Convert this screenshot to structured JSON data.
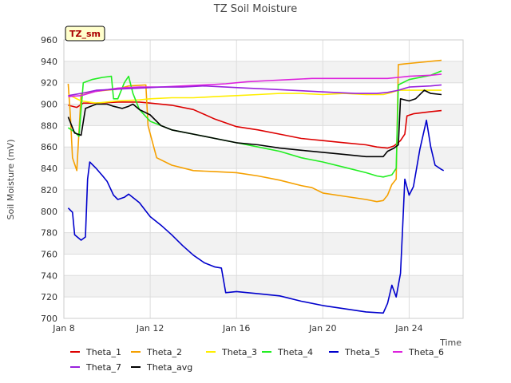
{
  "chart_data": {
    "type": "line",
    "title": "TZ Soil Moisture",
    "xlabel": "Time",
    "ylabel": "Soil Moisture (mV)",
    "site_label": "TZ_sm",
    "xlim": [
      8,
      26.5
    ],
    "ylim": [
      700,
      960
    ],
    "yticks": [
      700,
      720,
      740,
      760,
      780,
      800,
      820,
      840,
      860,
      880,
      900,
      920,
      940,
      960
    ],
    "xticks": [
      {
        "value": 8,
        "label": "Jan 8"
      },
      {
        "value": 12,
        "label": "Jan 12"
      },
      {
        "value": 16,
        "label": "Jan 16"
      },
      {
        "value": 20,
        "label": "Jan 20"
      },
      {
        "value": 24,
        "label": "Jan 24"
      }
    ],
    "series": [
      {
        "name": "Theta_1",
        "color": "#dd0000",
        "points": [
          [
            8.2,
            899
          ],
          [
            8.6,
            897
          ],
          [
            8.9,
            901
          ],
          [
            9.5,
            901
          ],
          [
            10.5,
            902
          ],
          [
            11.5,
            902
          ],
          [
            12,
            901
          ],
          [
            13,
            899
          ],
          [
            14,
            895
          ],
          [
            15,
            886
          ],
          [
            16,
            879
          ],
          [
            17,
            876
          ],
          [
            18,
            872
          ],
          [
            19,
            868
          ],
          [
            20,
            866
          ],
          [
            21,
            864
          ],
          [
            22,
            862
          ],
          [
            22.5,
            860
          ],
          [
            23,
            859
          ],
          [
            23.3,
            861
          ],
          [
            23.6,
            866
          ],
          [
            23.8,
            872
          ],
          [
            23.9,
            889
          ],
          [
            24.2,
            891
          ],
          [
            25,
            893
          ],
          [
            25.5,
            894
          ]
        ]
      },
      {
        "name": "Theta_2",
        "color": "#f5a000",
        "points": [
          [
            8.2,
            919
          ],
          [
            8.3,
            890
          ],
          [
            8.4,
            850
          ],
          [
            8.6,
            838
          ],
          [
            8.8,
            910
          ],
          [
            9.5,
            912
          ],
          [
            10.5,
            914
          ],
          [
            11,
            917
          ],
          [
            11.8,
            918
          ],
          [
            11.9,
            880
          ],
          [
            12.3,
            850
          ],
          [
            13,
            843
          ],
          [
            14,
            838
          ],
          [
            15,
            837
          ],
          [
            16,
            836
          ],
          [
            17,
            833
          ],
          [
            18,
            829
          ],
          [
            19,
            824
          ],
          [
            19.5,
            822
          ],
          [
            20,
            817
          ],
          [
            21,
            814
          ],
          [
            22,
            811
          ],
          [
            22.5,
            809
          ],
          [
            22.8,
            810
          ],
          [
            23,
            815
          ],
          [
            23.2,
            825
          ],
          [
            23.4,
            830
          ],
          [
            23.5,
            937
          ],
          [
            24,
            938
          ],
          [
            25,
            940
          ],
          [
            25.5,
            941
          ]
        ]
      },
      {
        "name": "Theta_3",
        "color": "#ffee00",
        "points": [
          [
            8.2,
            909
          ],
          [
            8.8,
            903
          ],
          [
            9.5,
            901
          ],
          [
            10.5,
            903
          ],
          [
            11.5,
            904
          ],
          [
            12,
            905
          ],
          [
            13,
            906
          ],
          [
            14,
            906
          ],
          [
            15,
            907
          ],
          [
            16,
            908
          ],
          [
            17,
            909
          ],
          [
            18,
            910
          ],
          [
            19,
            910
          ],
          [
            20,
            909
          ],
          [
            21,
            910
          ],
          [
            22,
            909
          ],
          [
            22.8,
            909
          ],
          [
            23.2,
            911
          ],
          [
            23.5,
            913
          ],
          [
            24,
            913
          ],
          [
            25,
            913
          ],
          [
            25.5,
            913
          ]
        ]
      },
      {
        "name": "Theta_4",
        "color": "#22ee22",
        "points": [
          [
            8.2,
            878
          ],
          [
            8.5,
            874
          ],
          [
            8.7,
            870
          ],
          [
            8.9,
            920
          ],
          [
            9.3,
            923
          ],
          [
            9.8,
            925
          ],
          [
            10.2,
            926
          ],
          [
            10.3,
            905
          ],
          [
            10.5,
            905
          ],
          [
            10.7,
            915
          ],
          [
            10.8,
            920
          ],
          [
            11,
            926
          ],
          [
            11.2,
            910
          ],
          [
            11.5,
            895
          ],
          [
            12,
            884
          ],
          [
            13,
            876
          ],
          [
            14,
            872
          ],
          [
            15,
            868
          ],
          [
            16,
            864
          ],
          [
            17,
            860
          ],
          [
            18,
            856
          ],
          [
            19,
            850
          ],
          [
            20,
            846
          ],
          [
            21,
            841
          ],
          [
            22,
            836
          ],
          [
            22.5,
            833
          ],
          [
            22.8,
            832
          ],
          [
            23.2,
            834
          ],
          [
            23.4,
            840
          ],
          [
            23.5,
            918
          ],
          [
            24,
            923
          ],
          [
            25,
            927
          ],
          [
            25.5,
            931
          ]
        ]
      },
      {
        "name": "Theta_5",
        "color": "#0000cc",
        "points": [
          [
            8.2,
            803
          ],
          [
            8.4,
            799
          ],
          [
            8.5,
            778
          ],
          [
            8.8,
            773
          ],
          [
            9,
            776
          ],
          [
            9.1,
            830
          ],
          [
            9.2,
            846
          ],
          [
            9.5,
            840
          ],
          [
            9.8,
            833
          ],
          [
            10,
            828
          ],
          [
            10.3,
            815
          ],
          [
            10.5,
            811
          ],
          [
            10.8,
            813
          ],
          [
            11,
            816
          ],
          [
            11.5,
            808
          ],
          [
            12,
            795
          ],
          [
            12.5,
            787
          ],
          [
            13,
            778
          ],
          [
            13.5,
            768
          ],
          [
            14,
            759
          ],
          [
            14.5,
            752
          ],
          [
            15,
            748
          ],
          [
            15.3,
            747
          ],
          [
            15.5,
            724
          ],
          [
            16,
            725
          ],
          [
            17,
            723
          ],
          [
            18,
            721
          ],
          [
            19,
            716
          ],
          [
            20,
            712
          ],
          [
            21,
            709
          ],
          [
            22,
            706
          ],
          [
            22.8,
            705
          ],
          [
            23,
            714
          ],
          [
            23.2,
            731
          ],
          [
            23.4,
            720
          ],
          [
            23.6,
            742
          ],
          [
            23.7,
            785
          ],
          [
            23.8,
            830
          ],
          [
            24,
            815
          ],
          [
            24.2,
            823
          ],
          [
            24.5,
            858
          ],
          [
            24.8,
            885
          ],
          [
            25,
            860
          ],
          [
            25.2,
            843
          ],
          [
            25.5,
            839
          ],
          [
            25.6,
            838
          ]
        ]
      },
      {
        "name": "Theta_6",
        "color": "#dd22dd",
        "points": [
          [
            8.2,
            907
          ],
          [
            8.8,
            908
          ],
          [
            9.5,
            912
          ],
          [
            10.5,
            915
          ],
          [
            11.5,
            916
          ],
          [
            12.5,
            916
          ],
          [
            13.5,
            917
          ],
          [
            14.5,
            918
          ],
          [
            15.5,
            919
          ],
          [
            16.5,
            921
          ],
          [
            17.5,
            922
          ],
          [
            18.5,
            923
          ],
          [
            19.5,
            924
          ],
          [
            20.5,
            924
          ],
          [
            21.5,
            924
          ],
          [
            22.5,
            924
          ],
          [
            23,
            924
          ],
          [
            23.5,
            925
          ],
          [
            24,
            926
          ],
          [
            25,
            927
          ],
          [
            25.5,
            928
          ]
        ]
      },
      {
        "name": "Theta_7",
        "color": "#9922dd",
        "points": [
          [
            8.2,
            908
          ],
          [
            8.8,
            910
          ],
          [
            9.5,
            913
          ],
          [
            10.5,
            914
          ],
          [
            11.5,
            915
          ],
          [
            12.5,
            916
          ],
          [
            13.5,
            916
          ],
          [
            14.5,
            917
          ],
          [
            15.5,
            916
          ],
          [
            16.5,
            915
          ],
          [
            17.5,
            914
          ],
          [
            18.5,
            913
          ],
          [
            19.5,
            912
          ],
          [
            20.5,
            911
          ],
          [
            21.5,
            910
          ],
          [
            22.5,
            910
          ],
          [
            23,
            911
          ],
          [
            23.5,
            913
          ],
          [
            24,
            916
          ],
          [
            25,
            917
          ],
          [
            25.5,
            918
          ]
        ]
      },
      {
        "name": "Theta_avg",
        "color": "#000000",
        "points": [
          [
            8.2,
            888
          ],
          [
            8.5,
            873
          ],
          [
            8.8,
            871
          ],
          [
            9,
            896
          ],
          [
            9.5,
            900
          ],
          [
            10,
            900
          ],
          [
            10.3,
            898
          ],
          [
            10.7,
            896
          ],
          [
            11,
            898
          ],
          [
            11.2,
            900
          ],
          [
            11.5,
            895
          ],
          [
            12,
            890
          ],
          [
            12.5,
            880
          ],
          [
            13,
            876
          ],
          [
            14,
            872
          ],
          [
            15,
            868
          ],
          [
            16,
            864
          ],
          [
            17,
            862
          ],
          [
            18,
            859
          ],
          [
            19,
            857
          ],
          [
            20,
            855
          ],
          [
            21,
            853
          ],
          [
            22,
            851
          ],
          [
            22.8,
            851
          ],
          [
            23,
            856
          ],
          [
            23.3,
            859
          ],
          [
            23.5,
            862
          ],
          [
            23.6,
            905
          ],
          [
            24,
            903
          ],
          [
            24.3,
            905
          ],
          [
            24.7,
            913
          ],
          [
            25,
            910
          ],
          [
            25.5,
            909
          ]
        ]
      }
    ],
    "legend": {
      "placement": "bottom",
      "entries": [
        "Theta_1",
        "Theta_2",
        "Theta_3",
        "Theta_4",
        "Theta_5",
        "Theta_6",
        "Theta_7",
        "Theta_avg"
      ]
    }
  }
}
